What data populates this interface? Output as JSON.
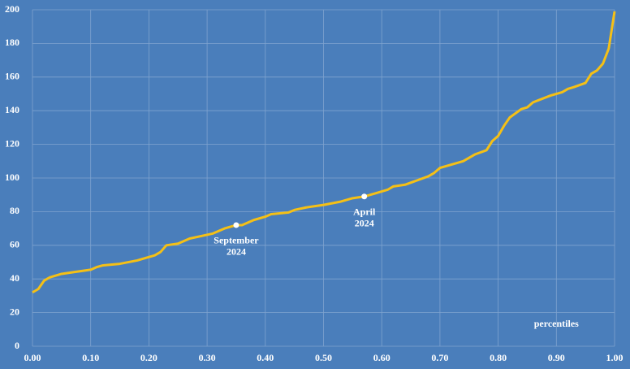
{
  "chart_data": {
    "type": "line",
    "x": [
      0.0,
      0.01,
      0.02,
      0.03,
      0.04,
      0.05,
      0.07,
      0.09,
      0.1,
      0.11,
      0.12,
      0.15,
      0.18,
      0.19,
      0.21,
      0.22,
      0.23,
      0.25,
      0.27,
      0.29,
      0.31,
      0.33,
      0.35,
      0.36,
      0.38,
      0.4,
      0.41,
      0.44,
      0.45,
      0.47,
      0.5,
      0.53,
      0.55,
      0.57,
      0.59,
      0.61,
      0.62,
      0.64,
      0.66,
      0.68,
      0.69,
      0.7,
      0.72,
      0.74,
      0.75,
      0.76,
      0.78,
      0.79,
      0.8,
      0.81,
      0.82,
      0.84,
      0.85,
      0.86,
      0.89,
      0.91,
      0.92,
      0.93,
      0.95,
      0.96,
      0.97,
      0.98,
      0.99,
      1.0
    ],
    "values": [
      32,
      34,
      39,
      41,
      42,
      43,
      44,
      45,
      45.5,
      47,
      48,
      49,
      51,
      52,
      54,
      56,
      60,
      61,
      64,
      65.5,
      67,
      70,
      72,
      72,
      75,
      77,
      78.5,
      79.5,
      81,
      82.5,
      84,
      86,
      88,
      89,
      91,
      93,
      95,
      96,
      98.5,
      101,
      103,
      106,
      108,
      110,
      112,
      114,
      116.5,
      122,
      125,
      131,
      136,
      141,
      142,
      145,
      149,
      151,
      153,
      154,
      156.5,
      162,
      164,
      168,
      177,
      199
    ],
    "color": "#f5c016",
    "xlabel": "percentiles",
    "annotations": [
      {
        "x": 0.35,
        "y": 72,
        "lines": [
          "September",
          "2024"
        ]
      },
      {
        "x": 0.57,
        "y": 89,
        "lines": [
          "April",
          "2024"
        ]
      }
    ],
    "xlim": [
      0,
      1
    ],
    "ylim": [
      0,
      200
    ],
    "xticks": [
      {
        "value": 0,
        "label": "0.00"
      },
      {
        "value": 0.1,
        "label": "0.10"
      },
      {
        "value": 0.2,
        "label": "0.20"
      },
      {
        "value": 0.3,
        "label": "0.30"
      },
      {
        "value": 0.4,
        "label": "0.40"
      },
      {
        "value": 0.5,
        "label": "0.50"
      },
      {
        "value": 0.6,
        "label": "0.60"
      },
      {
        "value": 0.7,
        "label": "0.70"
      },
      {
        "value": 0.8,
        "label": "0.80"
      },
      {
        "value": 0.9,
        "label": "0.90"
      },
      {
        "value": 1,
        "label": "1.00"
      }
    ],
    "yticks": [
      0,
      20,
      40,
      60,
      80,
      100,
      120,
      140,
      160,
      180,
      200
    ],
    "grid": true
  }
}
